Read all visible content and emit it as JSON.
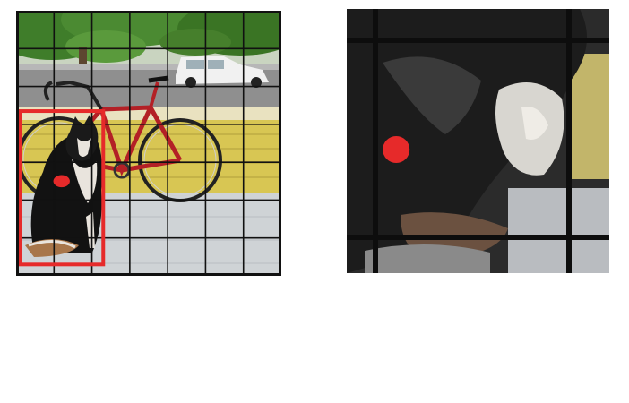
{
  "grid": {
    "rows": 7,
    "cols": 7,
    "line_color": "#111111"
  },
  "detection": {
    "box_color": "#e62a2a",
    "center_color": "#e62a2a",
    "object": "dog",
    "box_grid": {
      "col_start": 0.1,
      "col_end": 2.3,
      "row_start": 2.65,
      "row_end": 6.7
    },
    "center_grid": {
      "col": 1.2,
      "row": 4.5
    }
  },
  "zoomed_cell": {
    "grid_cell": {
      "row": 4,
      "col": 1
    }
  },
  "scene": {
    "foliage_color": "#3f7d2a",
    "road_color": "#8f8f8f",
    "porch_wall_color": "#d8c653",
    "porch_floor_color": "#cfd3d6",
    "bike_color": "#b32026",
    "car_color": "#f1f1f1",
    "dog_dark": "#121212",
    "dog_light": "#e9e4dd",
    "dog_tan": "#a8764a"
  }
}
